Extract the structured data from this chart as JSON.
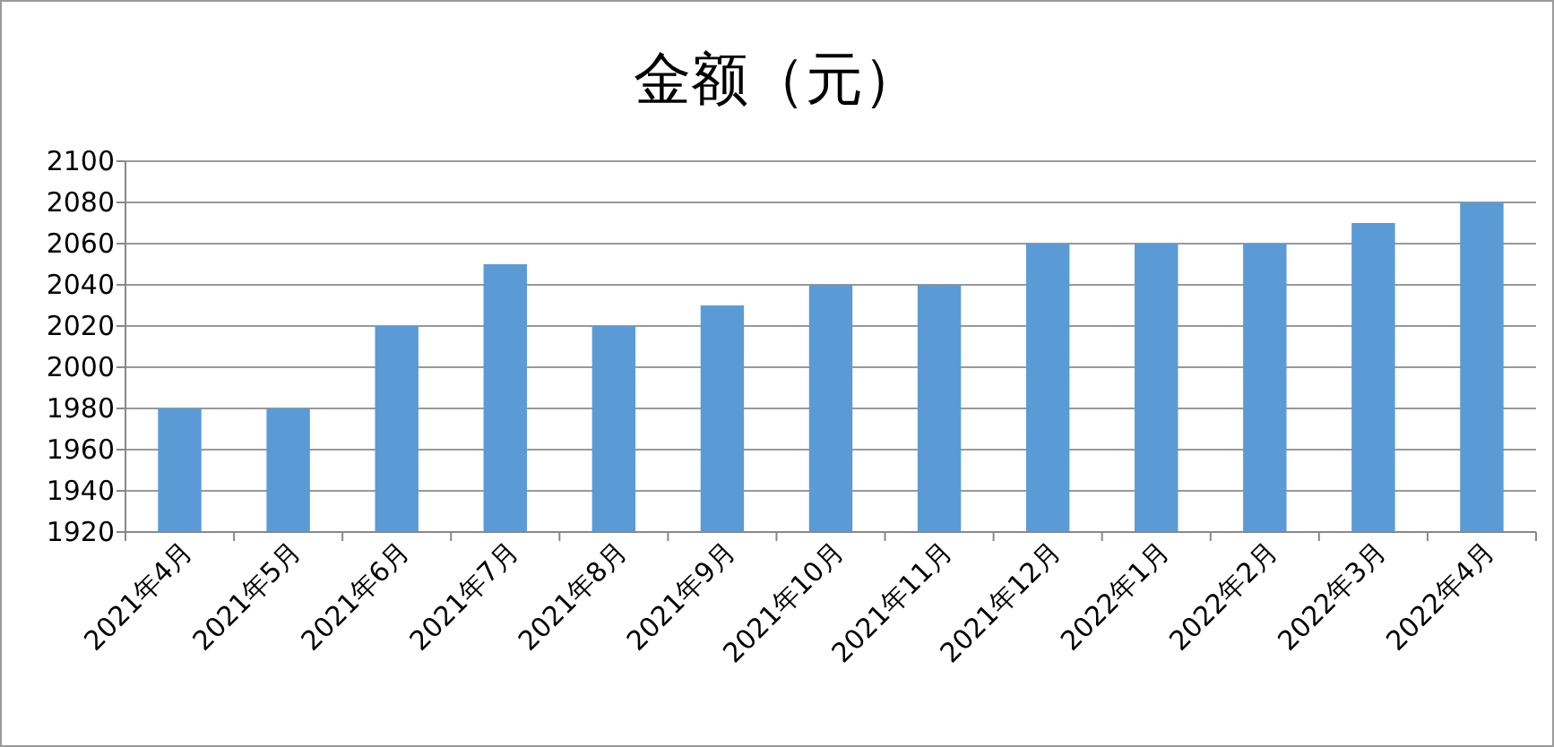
{
  "chart_data": {
    "type": "bar",
    "title": "金额（元）",
    "categories": [
      "2021年4月",
      "2021年5月",
      "2021年6月",
      "2021年7月",
      "2021年8月",
      "2021年9月",
      "2021年10月",
      "2021年11月",
      "2021年12月",
      "2022年1月",
      "2022年2月",
      "2022年3月",
      "2022年4月"
    ],
    "values": [
      1980,
      1980,
      2020,
      2050,
      2020,
      2030,
      2040,
      2040,
      2060,
      2060,
      2060,
      2070,
      2080
    ],
    "color": "#5b9bd5",
    "ylim": [
      1920,
      2100
    ],
    "yticks": [
      1920,
      1940,
      1960,
      1980,
      2000,
      2020,
      2040,
      2060,
      2080,
      2100
    ],
    "grid": "y"
  }
}
